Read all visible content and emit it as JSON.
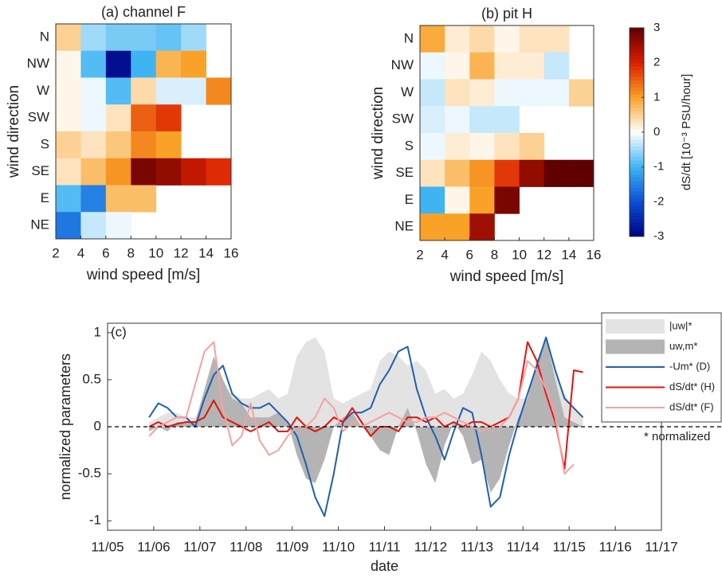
{
  "chart_data": [
    {
      "type": "heatmap",
      "title": "(a) channel F",
      "xlabel": "wind speed [m/s]",
      "ylabel": "wind direction",
      "categories": [
        "N",
        "NW",
        "W",
        "SW",
        "S",
        "SE",
        "E",
        "NE"
      ],
      "bins": [
        2,
        4,
        6,
        8,
        10,
        12,
        14,
        16
      ],
      "xlim": [
        2,
        16
      ],
      "xticks": [
        2,
        4,
        6,
        8,
        10,
        12,
        14,
        16
      ],
      "clim": [
        -3,
        3
      ],
      "colors": [
        "#00007f",
        "#0a4ed6",
        "#3fb4f2",
        "#ffffff",
        "#f9a227",
        "#dc1e00",
        "#600000"
      ],
      "values": [
        [
          0.5,
          -0.5,
          -0.7,
          -0.7,
          -0.8,
          -0.5,
          null
        ],
        [
          0.1,
          -0.9,
          -2.8,
          -1.0,
          0.8,
          1.0,
          null
        ],
        [
          0.1,
          -0.1,
          -0.9,
          0.4,
          -0.2,
          -0.2,
          1.2
        ],
        [
          0.1,
          -0.1,
          0.3,
          1.5,
          1.8,
          null,
          null
        ],
        [
          0.5,
          0.3,
          0.6,
          1.2,
          1.0,
          null,
          null
        ],
        [
          0.3,
          0.7,
          1.1,
          2.8,
          2.6,
          2.2,
          1.9
        ],
        [
          -0.9,
          -1.5,
          0.7,
          0.7,
          null,
          null,
          null
        ],
        [
          -1.6,
          -0.3,
          -0.1,
          null,
          null,
          null,
          null
        ]
      ]
    },
    {
      "type": "heatmap",
      "title": "(b) pit H",
      "xlabel": "wind speed [m/s]",
      "ylabel": "wind direction",
      "categories": [
        "N",
        "NW",
        "W",
        "SW",
        "S",
        "SE",
        "E",
        "NE"
      ],
      "bins": [
        2,
        4,
        6,
        8,
        10,
        12,
        14,
        16
      ],
      "xlim": [
        2,
        16
      ],
      "xticks": [
        2,
        4,
        6,
        8,
        10,
        12,
        14,
        16
      ],
      "clim": [
        -3,
        3
      ],
      "colors": [
        "#00007f",
        "#0a4ed6",
        "#3fb4f2",
        "#ffffff",
        "#f9a227",
        "#dc1e00",
        "#600000"
      ],
      "cticks": [
        -3,
        -2,
        -1,
        0,
        1,
        2,
        3
      ],
      "colorbar_label": "dS/dt   [10⁻³ PSU/hour]",
      "values": [
        [
          0.9,
          0.2,
          0.4,
          0.1,
          0.3,
          0.3,
          null
        ],
        [
          -0.1,
          0.1,
          0.8,
          0.2,
          0.2,
          -0.3,
          null
        ],
        [
          -0.3,
          0.3,
          0.2,
          -0.1,
          -0.1,
          -0.1,
          0.5
        ],
        [
          -0.2,
          -0.1,
          -0.3,
          -0.3,
          null,
          null,
          null
        ],
        [
          -0.1,
          0.2,
          0.1,
          0.3,
          0.5,
          null,
          null
        ],
        [
          0.3,
          0.7,
          1.1,
          1.8,
          2.6,
          3.0,
          3.0
        ],
        [
          -1.0,
          0.1,
          1.0,
          2.8,
          null,
          null,
          null
        ],
        [
          1.0,
          1.0,
          2.5,
          null,
          null,
          null,
          null
        ]
      ]
    },
    {
      "type": "line",
      "panel_label": "(c)",
      "xlabel": "date",
      "ylabel": "normalized parameters",
      "annotation": "* normalized",
      "grid": false,
      "xlim": [
        5,
        17
      ],
      "xticks": [
        {
          "value": 5,
          "label": "11/05"
        },
        {
          "value": 6,
          "label": "11/06"
        },
        {
          "value": 7,
          "label": "11/07"
        },
        {
          "value": 8,
          "label": "11/08"
        },
        {
          "value": 9,
          "label": "11/09"
        },
        {
          "value": 10,
          "label": "11/10"
        },
        {
          "value": 11,
          "label": "11/11"
        },
        {
          "value": 12,
          "label": "11/12"
        },
        {
          "value": 13,
          "label": "11/13"
        },
        {
          "value": 14,
          "label": "11/14"
        },
        {
          "value": 15,
          "label": "11/15"
        },
        {
          "value": 16,
          "label": "11/16"
        },
        {
          "value": 17,
          "label": "11/17"
        }
      ],
      "ylim": [
        -1.1,
        1.1
      ],
      "yticks": [
        -1,
        -0.5,
        0,
        0.5,
        1
      ],
      "x": [
        5.9,
        6.1,
        6.3,
        6.5,
        6.7,
        6.9,
        7.1,
        7.3,
        7.5,
        7.7,
        7.9,
        8.1,
        8.3,
        8.5,
        8.7,
        8.9,
        9.1,
        9.3,
        9.5,
        9.7,
        9.9,
        10.1,
        10.3,
        10.5,
        10.7,
        10.9,
        11.1,
        11.3,
        11.5,
        11.7,
        11.9,
        12.1,
        12.3,
        12.5,
        12.7,
        12.9,
        13.1,
        13.3,
        13.5,
        13.7,
        13.9,
        14.1,
        14.3,
        14.5,
        14.7,
        14.9,
        15.1,
        15.3
      ],
      "series": [
        {
          "name": "|uw|*",
          "style": "area",
          "color": "#e3e3e3",
          "values": [
            0.05,
            0.1,
            0.15,
            0.15,
            0.1,
            0.1,
            0.3,
            0.45,
            0.4,
            0.35,
            0.3,
            0.3,
            0.35,
            0.4,
            0.3,
            0.35,
            0.75,
            0.9,
            0.95,
            0.8,
            0.3,
            0.25,
            0.3,
            0.35,
            0.4,
            0.7,
            0.8,
            0.75,
            0.65,
            0.7,
            0.6,
            0.35,
            0.4,
            0.3,
            0.35,
            0.55,
            0.8,
            0.7,
            0.5,
            0.35,
            0.3,
            0.3,
            0.7,
            0.9,
            0.6,
            0.35,
            0.2,
            0.1
          ]
        },
        {
          "name": "uw,m*",
          "style": "area",
          "color": "#b4b4b4",
          "values": [
            -0.05,
            0.0,
            -0.05,
            0.05,
            0.05,
            0.05,
            0.4,
            0.75,
            0.5,
            0.3,
            0.25,
            0.1,
            0.1,
            0.1,
            0.15,
            0.05,
            -0.3,
            -0.55,
            -0.6,
            -0.35,
            0.0,
            0.1,
            0.15,
            0.0,
            -0.1,
            -0.25,
            -0.3,
            0.0,
            0.2,
            -0.05,
            -0.4,
            -0.6,
            -0.2,
            0.05,
            -0.1,
            -0.4,
            -0.35,
            -0.7,
            -0.55,
            -0.2,
            0.1,
            0.3,
            0.7,
            0.95,
            0.5,
            0.1,
            0.05,
            0.0
          ]
        },
        {
          "name": "-Um*  (D)",
          "style": "line",
          "color": "#1f5fb0",
          "values": [
            0.1,
            0.25,
            0.2,
            0.1,
            0.1,
            0.0,
            0.3,
            0.55,
            0.65,
            0.35,
            0.25,
            0.2,
            0.2,
            0.25,
            0.15,
            0.05,
            -0.1,
            -0.4,
            -0.75,
            -0.95,
            -0.5,
            0.05,
            0.15,
            0.15,
            0.2,
            0.45,
            0.6,
            0.8,
            0.85,
            0.4,
            0.1,
            -0.1,
            -0.35,
            -0.05,
            0.2,
            0.15,
            -0.3,
            -0.85,
            -0.75,
            -0.3,
            0.05,
            0.35,
            0.65,
            0.95,
            0.6,
            0.3,
            0.2,
            0.1
          ]
        },
        {
          "name": "dS/dt*  (H)",
          "style": "line",
          "color": "#e3120b",
          "values": [
            0.0,
            0.05,
            0.0,
            0.03,
            0.05,
            0.05,
            0.1,
            0.28,
            0.1,
            0.05,
            0.0,
            -0.05,
            0.0,
            0.05,
            -0.05,
            -0.05,
            0.1,
            0.0,
            -0.05,
            0.0,
            0.1,
            0.05,
            0.2,
            0.05,
            -0.1,
            0.0,
            0.0,
            -0.05,
            0.1,
            0.1,
            0.05,
            0.1,
            0.0,
            0.05,
            0.0,
            0.05,
            0.05,
            0.0,
            0.05,
            0.1,
            0.3,
            0.9,
            0.7,
            0.35,
            0.05,
            -0.45,
            0.6,
            0.58
          ]
        },
        {
          "name": "dS/dt*  (F)",
          "style": "line",
          "color": "#f7a1a1",
          "values": [
            -0.1,
            0.0,
            0.05,
            0.1,
            0.1,
            0.45,
            0.8,
            0.9,
            0.2,
            -0.2,
            -0.1,
            0.25,
            -0.15,
            -0.3,
            -0.25,
            -0.1,
            0.0,
            0.0,
            0.1,
            0.3,
            0.2,
            -0.05,
            0.05,
            0.0,
            0.05,
            0.1,
            0.15,
            0.1,
            0.05,
            0.05,
            0.1,
            0.1,
            0.15,
            0.1,
            0.05,
            0.0,
            -0.05,
            0.0,
            0.0,
            0.1,
            0.3,
            0.7,
            0.6,
            0.4,
            0.1,
            -0.5,
            -0.4,
            null
          ]
        }
      ]
    }
  ]
}
